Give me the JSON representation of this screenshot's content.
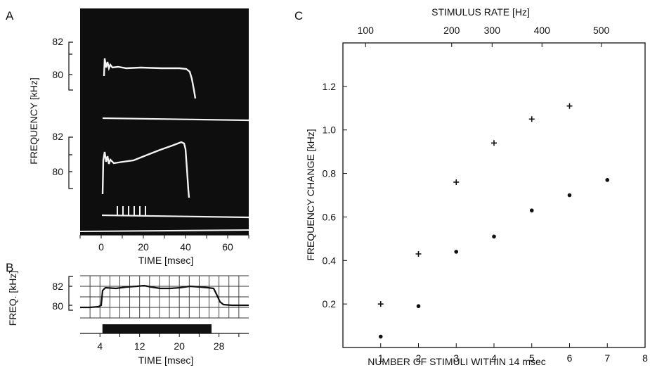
{
  "panel_labels": {
    "a": "A",
    "b": "B",
    "c": "C"
  },
  "colors": {
    "ink": "#111111",
    "osc_bg": "#0e0e0e",
    "trace": "#f2f2f2"
  },
  "panelA": {
    "ylabel": "FREQUENCY [kHz]",
    "xlabel": "TIME [msec]",
    "upper_y_ticks": [
      "82",
      "80"
    ],
    "lower_y_ticks": [
      "82",
      "80"
    ],
    "x_ticks": [
      "0",
      "20",
      "40",
      "60"
    ],
    "x_range": [
      -10,
      70
    ],
    "stimulus_marks_count": 6
  },
  "panelB": {
    "ylabel": "FREQ. [kHz]",
    "xlabel": "TIME [msec]",
    "y_ticks": [
      "82",
      "80"
    ],
    "x_ticks": [
      "4",
      "12",
      "20",
      "28"
    ],
    "x_range": [
      0,
      34
    ],
    "stimulus_bar": [
      4.5,
      26.5
    ]
  },
  "chart_data": [
    {
      "type": "scatter",
      "panel": "C",
      "title": "",
      "xlabel": "NUMBER OF STIMULI  WITHIN 14 msec",
      "ylabel": "FREQUENCY CHANGE [kHz]",
      "top_axis_label": "STIMULUS RATE [Hz]",
      "top_axis_ticks": [
        {
          "label": "100",
          "at_x": 0.6
        },
        {
          "label": "200",
          "at_x": 2.88
        },
        {
          "label": "300",
          "at_x": 3.95
        },
        {
          "label": "400",
          "at_x": 5.27
        },
        {
          "label": "500",
          "at_x": 6.84
        }
      ],
      "xlim": [
        0,
        8
      ],
      "ylim": [
        0,
        1.4
      ],
      "x_ticks": [
        1,
        2,
        3,
        4,
        5,
        6,
        7,
        8
      ],
      "y_ticks": [
        0.2,
        0.4,
        0.6,
        0.8,
        1.0,
        1.2
      ],
      "x_tick_labels": [
        "1",
        "2",
        "3",
        "4",
        "5",
        "6",
        "7",
        "8"
      ],
      "y_tick_labels": [
        "0.2",
        "0.4",
        "0.6",
        "0.8",
        "1.0",
        "1.2"
      ],
      "grid": false,
      "series": [
        {
          "marker": "plus",
          "x": [
            1,
            2,
            3,
            4,
            5,
            6
          ],
          "y": [
            0.2,
            0.43,
            0.76,
            0.94,
            1.05,
            1.11
          ]
        },
        {
          "marker": "dot",
          "x": [
            1,
            2,
            3,
            4,
            5,
            6,
            7
          ],
          "y": [
            0.05,
            0.19,
            0.44,
            0.51,
            0.63,
            0.7,
            0.77
          ]
        }
      ]
    }
  ]
}
